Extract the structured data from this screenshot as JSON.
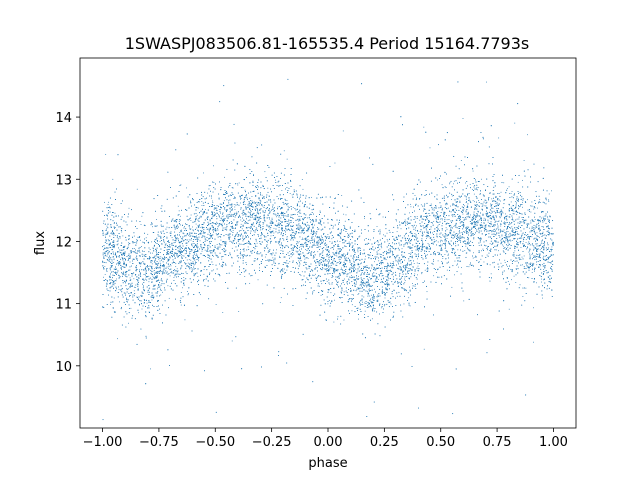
{
  "chart_data": {
    "type": "scatter",
    "title": "1SWASPJ083506.81-165535.4 Period 15164.7793s",
    "xlabel": "phase",
    "ylabel": "flux",
    "xlim": [
      -1.1,
      1.1
    ],
    "ylim": [
      9.0,
      14.95
    ],
    "x_ticks": [
      -1.0,
      -0.75,
      -0.5,
      -0.25,
      0.0,
      0.25,
      0.5,
      0.75,
      1.0
    ],
    "x_tick_labels": [
      "−1.00",
      "−0.75",
      "−0.50",
      "−0.25",
      "0.00",
      "0.25",
      "0.50",
      "0.75",
      "1.00"
    ],
    "y_ticks": [
      10,
      11,
      12,
      13,
      14
    ],
    "y_tick_labels": [
      "10",
      "11",
      "12",
      "13",
      "14"
    ],
    "grid": false,
    "legend": "none",
    "series": [
      {
        "marker_color": "#1f77b4",
        "phase_range": [
          -1.0,
          1.0
        ],
        "point_count": 14000,
        "trend": {
          "phase": [
            -1.0,
            -0.9,
            -0.8,
            -0.7,
            -0.6,
            -0.5,
            -0.4,
            -0.3,
            -0.2,
            -0.1,
            0.0,
            0.1,
            0.2,
            0.3,
            0.4,
            0.5,
            0.6,
            0.7,
            0.8,
            0.9,
            1.0
          ],
          "flux": [
            11.9,
            11.6,
            11.5,
            11.8,
            12.0,
            12.2,
            12.3,
            12.3,
            12.2,
            12.0,
            11.8,
            11.6,
            11.4,
            11.7,
            12.0,
            12.2,
            12.3,
            12.3,
            12.2,
            12.0,
            11.9
          ]
        },
        "flux_spread_std": 0.38
      }
    ]
  }
}
